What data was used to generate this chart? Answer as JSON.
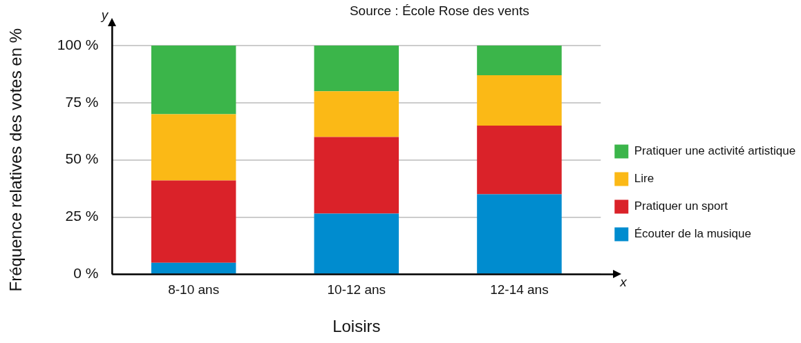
{
  "chart_data": {
    "type": "bar",
    "stacked": true,
    "xlabel": "Loisirs",
    "ylabel": "Fréquence relatives des votes en %",
    "annotations": [
      "Source : École Rose des vents",
      "x",
      "y"
    ],
    "categories": [
      "8-10 ans",
      "10-12 ans",
      "12-14 ans"
    ],
    "series": [
      {
        "name": "Écouter de la musique",
        "color": "#008ccf",
        "values": [
          5,
          26.5,
          35
        ]
      },
      {
        "name": "Pratiquer un sport",
        "color": "#da2229",
        "values": [
          36,
          33.5,
          30
        ]
      },
      {
        "name": "Lire",
        "color": "#fbb916",
        "values": [
          29,
          20,
          22
        ]
      },
      {
        "name": "Pratiquer une activité artistique",
        "color": "#3bb54a",
        "values": [
          30,
          20,
          13
        ]
      }
    ],
    "ylim": [
      0,
      100
    ],
    "yticks": [
      {
        "value": 0,
        "label": "0 %"
      },
      {
        "value": 25,
        "label": "25 %"
      },
      {
        "value": 50,
        "label": "50 %"
      },
      {
        "value": 75,
        "label": "75 %"
      },
      {
        "value": 100,
        "label": "100 %"
      }
    ],
    "grid": "y",
    "legend": "right"
  }
}
